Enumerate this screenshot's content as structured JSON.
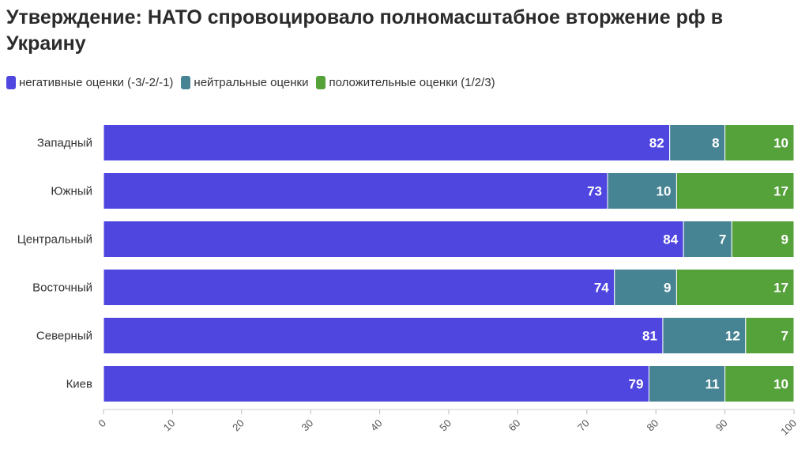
{
  "title": "Утверждение: НАТО спровоцировало полномасштабное вторжение рф в Украину",
  "legend": [
    {
      "label": "негативные оценки (-3/-2/-1)",
      "color": "#4f46e0"
    },
    {
      "label": "нейтральные оценки",
      "color": "#468494"
    },
    {
      "label": "положительные оценки (1/2/3)",
      "color": "#55a13a"
    }
  ],
  "chart_data": {
    "type": "bar",
    "orientation": "horizontal",
    "stacked": true,
    "categories": [
      "Западный",
      "Южный",
      "Центральный",
      "Восточный",
      "Северный",
      "Киев"
    ],
    "series": [
      {
        "name": "негативные оценки (-3/-2/-1)",
        "color": "#4f46e0",
        "values": [
          82,
          73,
          84,
          74,
          81,
          79
        ]
      },
      {
        "name": "нейтральные оценки",
        "color": "#468494",
        "values": [
          8,
          10,
          7,
          9,
          12,
          11
        ]
      },
      {
        "name": "положительные оценки (1/2/3)",
        "color": "#55a13a",
        "values": [
          10,
          17,
          9,
          17,
          7,
          10
        ]
      }
    ],
    "title": "Утверждение: НАТО спровоцировало полномасштабное вторжение рф в Украину",
    "xlim": [
      0,
      100
    ],
    "x_ticks": [
      "0",
      "10",
      "20",
      "30",
      "40",
      "50",
      "60",
      "70",
      "80",
      "90",
      "100"
    ],
    "grid": false,
    "legend_position": "top-left"
  }
}
